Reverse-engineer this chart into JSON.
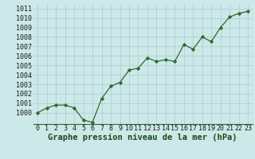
{
  "hours": [
    0,
    1,
    2,
    3,
    4,
    5,
    6,
    7,
    8,
    9,
    10,
    11,
    12,
    13,
    14,
    15,
    16,
    17,
    18,
    19,
    20,
    21,
    22,
    23
  ],
  "pressure": [
    1000.0,
    1000.5,
    1000.8,
    1000.8,
    1000.5,
    999.2,
    999.0,
    1001.5,
    1002.8,
    1003.2,
    1004.5,
    1004.7,
    1005.8,
    1005.4,
    1005.6,
    1005.4,
    1007.2,
    1006.7,
    1008.0,
    1007.5,
    1009.0,
    1010.1,
    1010.5,
    1010.7
  ],
  "line_color": "#2d6a2d",
  "marker_color": "#2d6a2d",
  "bg_color": "#cce8e8",
  "grid_color": "#aacccc",
  "xlabel": "Graphe pression niveau de la mer (hPa)",
  "xlabel_color": "#1a4a1a",
  "tick_label_color": "#1a1a1a",
  "ylim": [
    998.8,
    1011.4
  ],
  "yticks": [
    1000,
    1001,
    1002,
    1003,
    1004,
    1005,
    1006,
    1007,
    1008,
    1009,
    1010,
    1011
  ],
  "xlabel_fontsize": 7.5,
  "tick_fontsize": 6.0
}
